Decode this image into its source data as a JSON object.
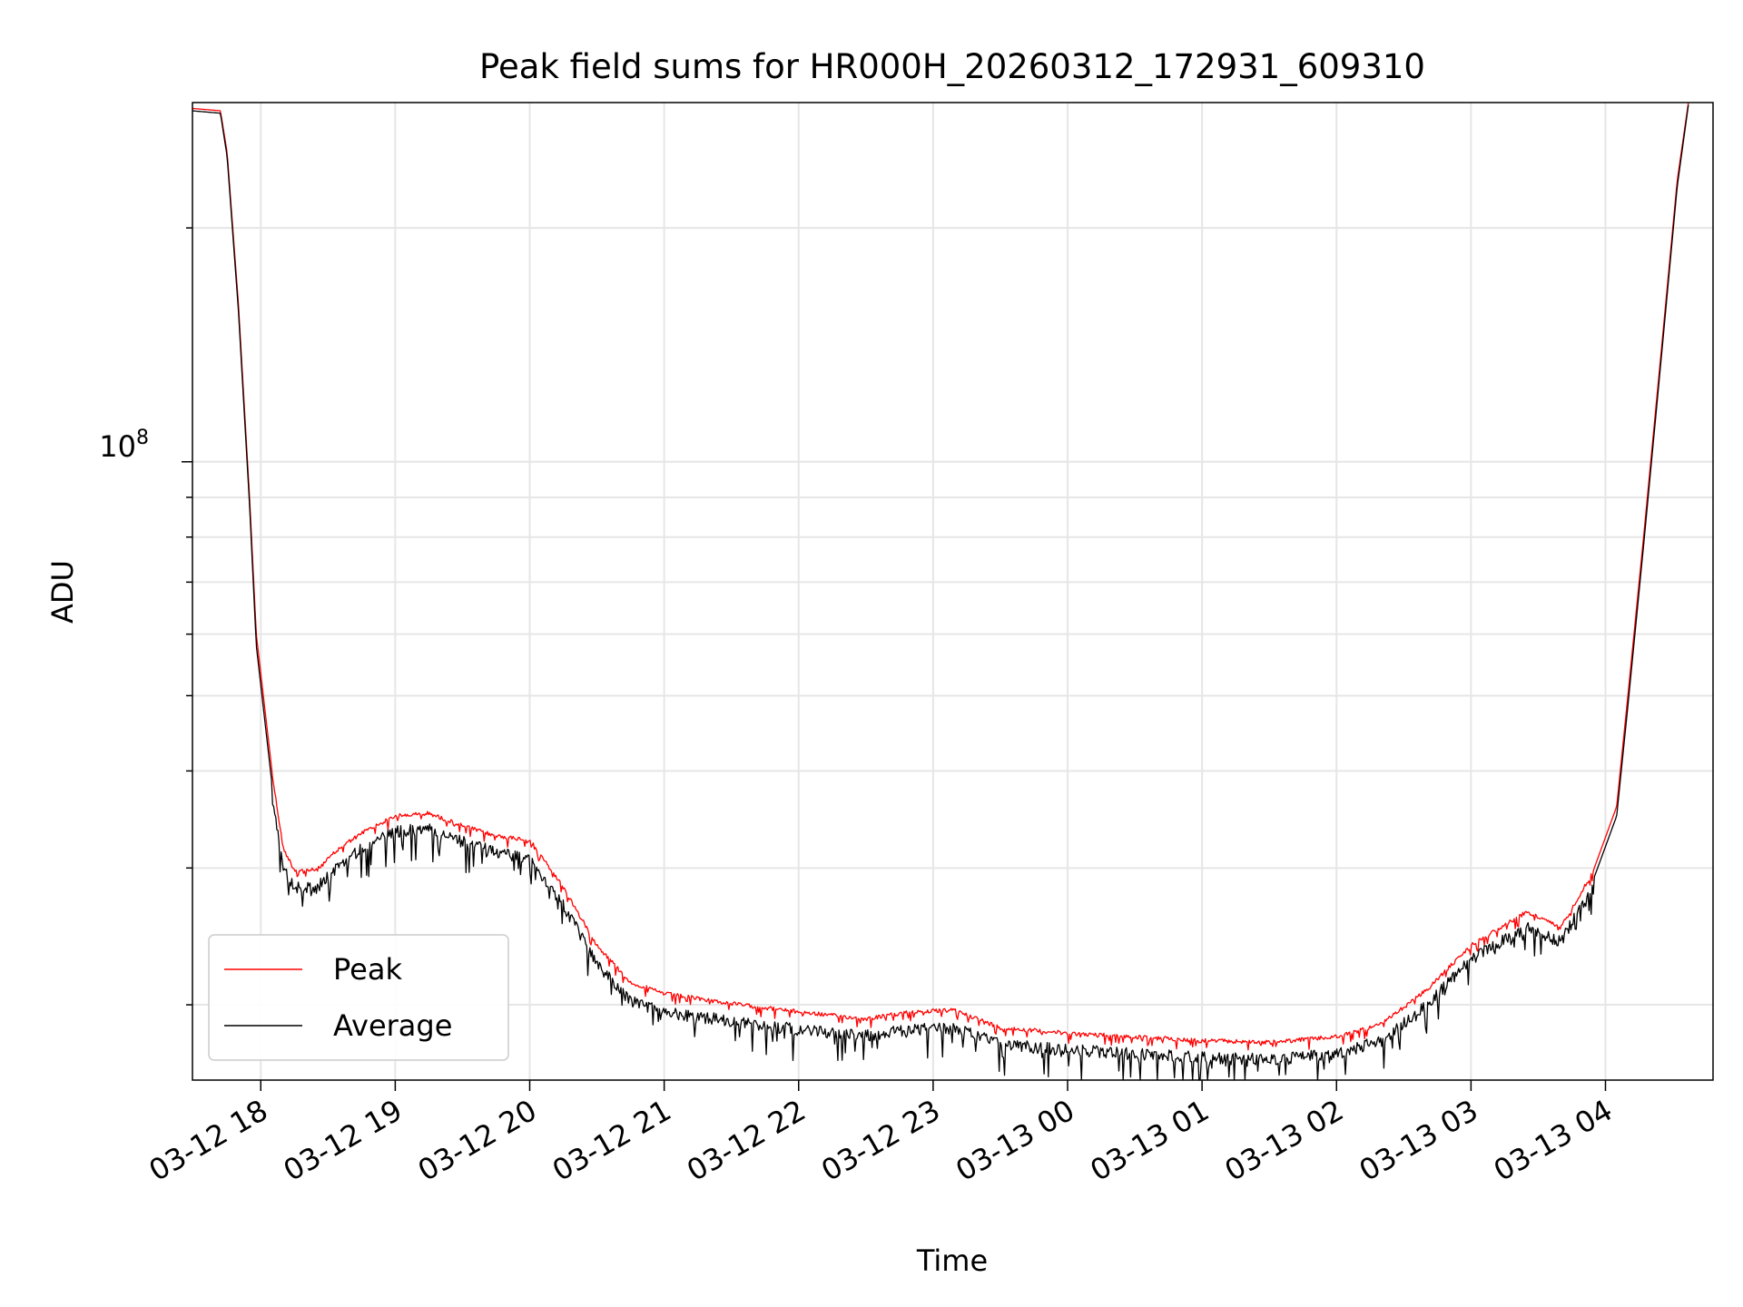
{
  "chart_data": {
    "type": "line",
    "title": "Peak field sums for HR000H_20260312_172931_609310",
    "xlabel": "Time",
    "ylabel": "ADU",
    "y_scale": "log",
    "ylim": [
      16000000,
      290000000
    ],
    "xlim": [
      "2026-03-12T17:29:31",
      "2026-03-13T04:48:00"
    ],
    "x_ticks": [
      {
        "time": "2026-03-12T18:00",
        "label": "03-12 18"
      },
      {
        "time": "2026-03-12T19:00",
        "label": "03-12 19"
      },
      {
        "time": "2026-03-12T20:00",
        "label": "03-12 20"
      },
      {
        "time": "2026-03-12T21:00",
        "label": "03-12 21"
      },
      {
        "time": "2026-03-12T22:00",
        "label": "03-12 22"
      },
      {
        "time": "2026-03-12T23:00",
        "label": "03-12 23"
      },
      {
        "time": "2026-03-13T00:00",
        "label": "03-13 00"
      },
      {
        "time": "2026-03-13T01:00",
        "label": "03-13 01"
      },
      {
        "time": "2026-03-13T02:00",
        "label": "03-13 02"
      },
      {
        "time": "2026-03-13T03:00",
        "label": "03-13 03"
      },
      {
        "time": "2026-03-13T04:00",
        "label": "03-13 04"
      }
    ],
    "y_major_tick": {
      "value": 100000000,
      "label_base": "10",
      "label_exp": "8"
    },
    "grid": true,
    "legend_position": "lower-left",
    "series": [
      {
        "name": "Peak",
        "color": "#ff0000",
        "points": [
          [
            "2026-03-12T17:29:31",
            285000000
          ],
          [
            "2026-03-12T17:42",
            283000000
          ],
          [
            "2026-03-12T17:45",
            250000000
          ],
          [
            "2026-03-12T17:50",
            160000000
          ],
          [
            "2026-03-12T17:55",
            90000000
          ],
          [
            "2026-03-12T17:58",
            60000000
          ],
          [
            "2026-03-12T18:05",
            40000000
          ],
          [
            "2026-03-12T18:10",
            32000000
          ],
          [
            "2026-03-12T18:15",
            30000000
          ],
          [
            "2026-03-12T18:25",
            30000000
          ],
          [
            "2026-03-12T18:35",
            32000000
          ],
          [
            "2026-03-12T18:45",
            33500000
          ],
          [
            "2026-03-12T19:00",
            35200000
          ],
          [
            "2026-03-12T19:15",
            35500000
          ],
          [
            "2026-03-12T19:30",
            34200000
          ],
          [
            "2026-03-12T19:45",
            33200000
          ],
          [
            "2026-03-12T20:00",
            32800000
          ],
          [
            "2026-03-12T20:15",
            28500000
          ],
          [
            "2026-03-12T20:30",
            24000000
          ],
          [
            "2026-03-12T20:45",
            21500000
          ],
          [
            "2026-03-12T21:00",
            20800000
          ],
          [
            "2026-03-12T21:30",
            20200000
          ],
          [
            "2026-03-12T22:00",
            19700000
          ],
          [
            "2026-03-12T22:30",
            19300000
          ],
          [
            "2026-03-12T22:50",
            19700000
          ],
          [
            "2026-03-12T23:10",
            19800000
          ],
          [
            "2026-03-12T23:30",
            18800000
          ],
          [
            "2026-03-13T00:00",
            18500000
          ],
          [
            "2026-03-13T00:30",
            18300000
          ],
          [
            "2026-03-13T01:00",
            18100000
          ],
          [
            "2026-03-13T01:30",
            18000000
          ],
          [
            "2026-03-13T02:00",
            18300000
          ],
          [
            "2026-03-13T02:20",
            19000000
          ],
          [
            "2026-03-13T02:40",
            21000000
          ],
          [
            "2026-03-13T03:00",
            24000000
          ],
          [
            "2026-03-13T03:15",
            25500000
          ],
          [
            "2026-03-13T03:25",
            26500000
          ],
          [
            "2026-03-13T03:40",
            25300000
          ],
          [
            "2026-03-13T03:55",
            30000000
          ],
          [
            "2026-03-13T04:05",
            36000000
          ],
          [
            "2026-03-13T04:10",
            50000000
          ],
          [
            "2026-03-13T04:17",
            80000000
          ],
          [
            "2026-03-13T04:25",
            140000000
          ],
          [
            "2026-03-13T04:32",
            230000000
          ],
          [
            "2026-03-13T04:37",
            290000000
          ]
        ]
      },
      {
        "name": "Average",
        "color": "#000000",
        "points": [
          [
            "2026-03-12T17:29:31",
            283000000
          ],
          [
            "2026-03-12T17:42",
            281000000
          ],
          [
            "2026-03-12T17:45",
            247000000
          ],
          [
            "2026-03-12T17:50",
            157000000
          ],
          [
            "2026-03-12T17:55",
            88000000
          ],
          [
            "2026-03-12T17:58",
            58000000
          ],
          [
            "2026-03-12T18:05",
            38500000
          ],
          [
            "2026-03-12T18:10",
            30500000
          ],
          [
            "2026-03-12T18:15",
            28800000
          ],
          [
            "2026-03-12T18:25",
            28800000
          ],
          [
            "2026-03-12T18:35",
            30800000
          ],
          [
            "2026-03-12T18:45",
            32300000
          ],
          [
            "2026-03-12T19:00",
            34000000
          ],
          [
            "2026-03-12T19:15",
            34300000
          ],
          [
            "2026-03-12T19:30",
            33000000
          ],
          [
            "2026-03-12T19:45",
            32000000
          ],
          [
            "2026-03-12T20:00",
            31500000
          ],
          [
            "2026-03-12T20:15",
            27300000
          ],
          [
            "2026-03-12T20:30",
            23000000
          ],
          [
            "2026-03-12T20:45",
            20600000
          ],
          [
            "2026-03-12T21:00",
            19900000
          ],
          [
            "2026-03-12T21:30",
            19400000
          ],
          [
            "2026-03-12T22:00",
            18900000
          ],
          [
            "2026-03-12T22:30",
            18600000
          ],
          [
            "2026-03-12T22:50",
            18900000
          ],
          [
            "2026-03-12T23:10",
            19000000
          ],
          [
            "2026-03-12T23:30",
            18100000
          ],
          [
            "2026-03-13T00:00",
            17800000
          ],
          [
            "2026-03-13T00:30",
            17600000
          ],
          [
            "2026-03-13T01:00",
            17400000
          ],
          [
            "2026-03-13T01:30",
            17300000
          ],
          [
            "2026-03-13T02:00",
            17600000
          ],
          [
            "2026-03-13T02:20",
            18300000
          ],
          [
            "2026-03-13T02:40",
            20300000
          ],
          [
            "2026-03-13T03:00",
            23300000
          ],
          [
            "2026-03-13T03:15",
            24700000
          ],
          [
            "2026-03-13T03:25",
            25600000
          ],
          [
            "2026-03-13T03:40",
            24500000
          ],
          [
            "2026-03-13T03:55",
            29200000
          ],
          [
            "2026-03-13T04:05",
            35000000
          ],
          [
            "2026-03-13T04:10",
            48500000
          ],
          [
            "2026-03-13T04:17",
            78000000
          ],
          [
            "2026-03-13T04:25",
            137000000
          ],
          [
            "2026-03-13T04:32",
            226000000
          ],
          [
            "2026-03-13T04:37",
            288000000
          ]
        ]
      }
    ]
  }
}
